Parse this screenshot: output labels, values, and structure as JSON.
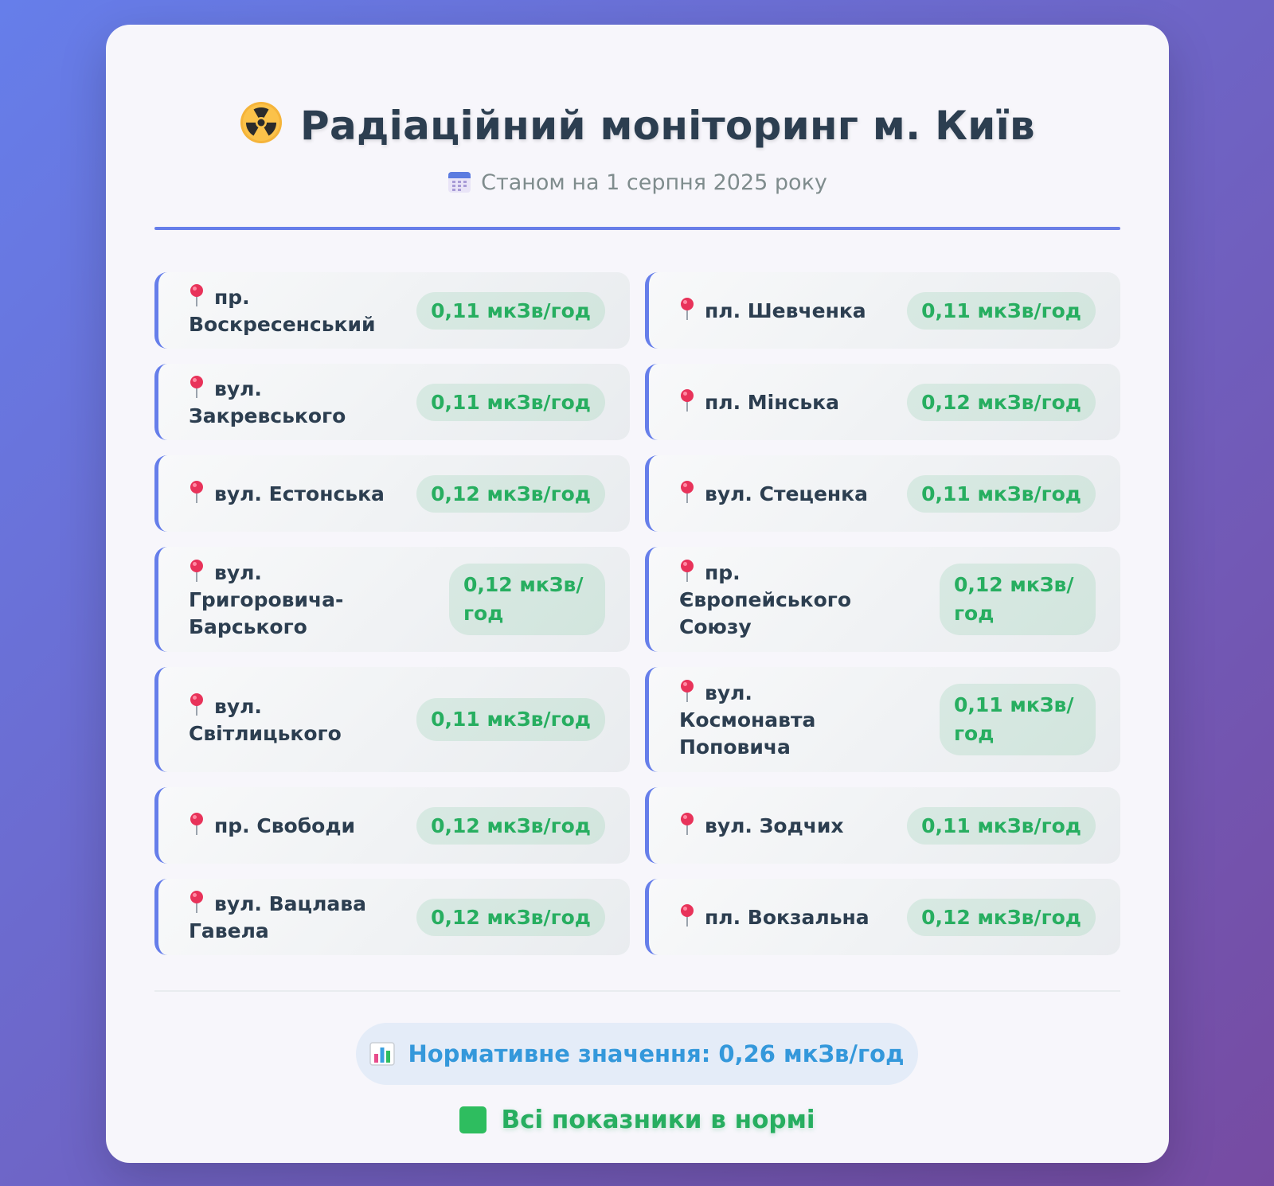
{
  "header": {
    "title": "Радіаційний моніторинг м. Київ",
    "title_icon": "radiation-icon",
    "subtitle": "Станом на 1 серпня 2025 року",
    "subtitle_icon": "calendar-icon"
  },
  "locations": [
    {
      "name": "пр. Воскресенський",
      "value": "0,11 мкЗв/год"
    },
    {
      "name": "пл. Шевченка",
      "value": "0,11 мкЗв/год"
    },
    {
      "name": "вул. Закревського",
      "value": "0,11 мкЗв/год"
    },
    {
      "name": "пл. Мінська",
      "value": "0,12 мкЗв/год"
    },
    {
      "name": "вул. Естонська",
      "value": "0,12 мкЗв/год"
    },
    {
      "name": "вул. Стеценка",
      "value": "0,11 мкЗв/год"
    },
    {
      "name": "вул. Григоровича-Барського",
      "value": "0,12 мкЗв/год"
    },
    {
      "name": "пр. Європейського Союзу",
      "value": "0,12 мкЗв/год"
    },
    {
      "name": "вул. Світлицького",
      "value": "0,11 мкЗв/год"
    },
    {
      "name": "вул. Космонавта Поповича",
      "value": "0,11 мкЗв/год"
    },
    {
      "name": "пр. Свободи",
      "value": "0,12 мкЗв/год"
    },
    {
      "name": "вул. Зодчих",
      "value": "0,11 мкЗв/год"
    },
    {
      "name": "вул. Вацлава Гавела",
      "value": "0,12 мкЗв/год"
    },
    {
      "name": "пл. Вокзальна",
      "value": "0,12 мкЗв/год"
    }
  ],
  "footer": {
    "norm_label": "Нормативне значення: 0,26 мкЗв/год",
    "norm_icon": "bar-chart-icon",
    "status_label": "Всі показники в нормі",
    "status_icon": "check-square-icon"
  },
  "colors": {
    "accent": "#667eea",
    "value_green": "#27ae60",
    "norm_blue": "#3498db",
    "title_dark": "#2c3e50"
  }
}
